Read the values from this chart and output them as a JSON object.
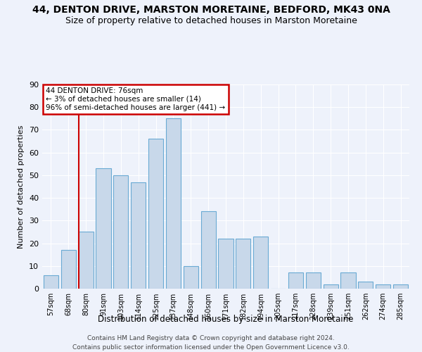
{
  "title1": "44, DENTON DRIVE, MARSTON MORETAINE, BEDFORD, MK43 0NA",
  "title2": "Size of property relative to detached houses in Marston Moretaine",
  "xlabel": "Distribution of detached houses by size in Marston Moretaine",
  "ylabel": "Number of detached properties",
  "footer1": "Contains HM Land Registry data © Crown copyright and database right 2024.",
  "footer2": "Contains public sector information licensed under the Open Government Licence v3.0.",
  "categories": [
    "57sqm",
    "68sqm",
    "80sqm",
    "91sqm",
    "103sqm",
    "114sqm",
    "125sqm",
    "137sqm",
    "148sqm",
    "160sqm",
    "171sqm",
    "182sqm",
    "194sqm",
    "205sqm",
    "217sqm",
    "228sqm",
    "239sqm",
    "251sqm",
    "262sqm",
    "274sqm",
    "285sqm"
  ],
  "values": [
    6,
    17,
    25,
    53,
    50,
    47,
    66,
    75,
    10,
    34,
    22,
    22,
    23,
    0,
    7,
    7,
    2,
    7,
    3,
    2,
    2
  ],
  "bar_color": "#c8d8ea",
  "bar_edge_color": "#6aaad4",
  "background_color": "#eef2fb",
  "grid_color": "#ffffff",
  "ylim": [
    0,
    90
  ],
  "yticks": [
    0,
    10,
    20,
    30,
    40,
    50,
    60,
    70,
    80,
    90
  ],
  "annotation_text": "44 DENTON DRIVE: 76sqm\n← 3% of detached houses are smaller (14)\n96% of semi-detached houses are larger (441) →",
  "annotation_box_color": "#ffffff",
  "annotation_box_edge": "#cc0000",
  "vline_color": "#cc0000",
  "title1_fontsize": 10,
  "title2_fontsize": 9
}
